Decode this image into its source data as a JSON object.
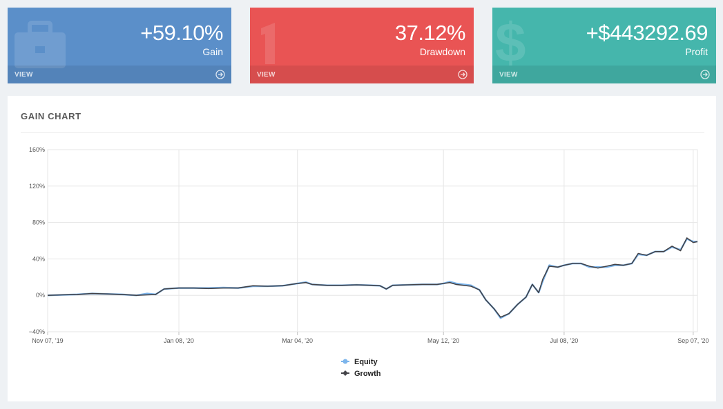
{
  "cards": {
    "gain": {
      "value": "+59.10%",
      "label": "Gain",
      "view": "VIEW",
      "color": "#5b8fc9",
      "icon": "briefcase-icon"
    },
    "drawdown": {
      "value": "37.12%",
      "label": "Drawdown",
      "view": "VIEW",
      "color": "#e95454",
      "icon": "number-one-icon"
    },
    "profit": {
      "value": "+$443292.69",
      "label": "Profit",
      "view": "VIEW",
      "color": "#45b6ac",
      "icon": "dollar-icon"
    }
  },
  "panel": {
    "title": "GAIN CHART"
  },
  "chart_data": {
    "type": "line",
    "ylim": [
      -40,
      160
    ],
    "yticks": [
      -40,
      0,
      40,
      80,
      120,
      160
    ],
    "ytick_labels": [
      "−40%",
      "0%",
      "40%",
      "80%",
      "120%",
      "160%"
    ],
    "xlim": [
      "2019-11-07",
      "2020-09-09"
    ],
    "xticks": [
      "2019-11-07",
      "2020-01-08",
      "2020-03-04",
      "2020-05-12",
      "2020-07-08",
      "2020-09-07"
    ],
    "xtick_labels": [
      "Nov 07, '19",
      "Jan 08, '20",
      "Mar 04, '20",
      "May 12, '20",
      "Jul 08, '20",
      "Sep 07, '20"
    ],
    "grid": true,
    "legend_position": "bottom-center",
    "series": [
      {
        "name": "Equity",
        "color": "#7cb5ec",
        "marker": "circle",
        "points": [
          [
            "2019-11-07",
            0
          ],
          [
            "2019-11-14",
            0.5
          ],
          [
            "2019-11-21",
            1
          ],
          [
            "2019-11-28",
            2
          ],
          [
            "2019-12-05",
            1.5
          ],
          [
            "2019-12-12",
            1
          ],
          [
            "2019-12-19",
            0
          ],
          [
            "2019-12-24",
            2
          ],
          [
            "2019-12-28",
            1
          ],
          [
            "2020-01-01",
            7
          ],
          [
            "2020-01-08",
            8
          ],
          [
            "2020-01-15",
            8
          ],
          [
            "2020-01-22",
            8
          ],
          [
            "2020-01-29",
            8.5
          ],
          [
            "2020-02-05",
            8
          ],
          [
            "2020-02-12",
            10
          ],
          [
            "2020-02-19",
            10
          ],
          [
            "2020-02-26",
            10.5
          ],
          [
            "2020-03-04",
            13
          ],
          [
            "2020-03-08",
            14.5
          ],
          [
            "2020-03-11",
            12
          ],
          [
            "2020-03-18",
            11
          ],
          [
            "2020-03-25",
            11
          ],
          [
            "2020-04-01",
            11.5
          ],
          [
            "2020-04-08",
            11
          ],
          [
            "2020-04-12",
            10.5
          ],
          [
            "2020-04-15",
            7
          ],
          [
            "2020-04-18",
            11
          ],
          [
            "2020-04-25",
            11.5
          ],
          [
            "2020-05-02",
            12
          ],
          [
            "2020-05-09",
            12
          ],
          [
            "2020-05-12",
            13
          ],
          [
            "2020-05-15",
            15
          ],
          [
            "2020-05-18",
            13
          ],
          [
            "2020-05-25",
            11
          ],
          [
            "2020-05-29",
            6
          ],
          [
            "2020-06-01",
            -5
          ],
          [
            "2020-06-05",
            -15
          ],
          [
            "2020-06-08",
            -25
          ],
          [
            "2020-06-12",
            -20
          ],
          [
            "2020-06-16",
            -10
          ],
          [
            "2020-06-20",
            -2
          ],
          [
            "2020-06-23",
            12
          ],
          [
            "2020-06-26",
            3
          ],
          [
            "2020-06-28",
            16
          ],
          [
            "2020-07-01",
            33
          ],
          [
            "2020-07-05",
            31
          ],
          [
            "2020-07-08",
            33
          ],
          [
            "2020-07-12",
            35
          ],
          [
            "2020-07-16",
            35
          ],
          [
            "2020-07-20",
            31
          ],
          [
            "2020-07-24",
            31
          ],
          [
            "2020-07-28",
            31
          ],
          [
            "2020-08-01",
            33
          ],
          [
            "2020-08-05",
            33
          ],
          [
            "2020-08-09",
            35
          ],
          [
            "2020-08-12",
            45
          ],
          [
            "2020-08-16",
            44
          ],
          [
            "2020-08-20",
            48
          ],
          [
            "2020-08-24",
            48
          ],
          [
            "2020-08-28",
            53
          ],
          [
            "2020-09-01",
            50
          ],
          [
            "2020-09-04",
            62
          ],
          [
            "2020-09-07",
            59
          ],
          [
            "2020-09-09",
            59
          ]
        ]
      },
      {
        "name": "Growth",
        "color": "#434348",
        "marker": "diamond",
        "points": [
          [
            "2019-11-07",
            0
          ],
          [
            "2019-11-14",
            0.5
          ],
          [
            "2019-11-21",
            1
          ],
          [
            "2019-11-28",
            2
          ],
          [
            "2019-12-05",
            1.5
          ],
          [
            "2019-12-12",
            1
          ],
          [
            "2019-12-19",
            0
          ],
          [
            "2019-12-24",
            0.5
          ],
          [
            "2019-12-28",
            1
          ],
          [
            "2020-01-01",
            7
          ],
          [
            "2020-01-08",
            8
          ],
          [
            "2020-01-15",
            8
          ],
          [
            "2020-01-22",
            7.5
          ],
          [
            "2020-01-29",
            8
          ],
          [
            "2020-02-05",
            8
          ],
          [
            "2020-02-12",
            10.5
          ],
          [
            "2020-02-19",
            10
          ],
          [
            "2020-02-26",
            10.5
          ],
          [
            "2020-03-04",
            13
          ],
          [
            "2020-03-08",
            14
          ],
          [
            "2020-03-11",
            12
          ],
          [
            "2020-03-18",
            11
          ],
          [
            "2020-03-25",
            11
          ],
          [
            "2020-04-01",
            11.5
          ],
          [
            "2020-04-08",
            11
          ],
          [
            "2020-04-12",
            10.5
          ],
          [
            "2020-04-15",
            7
          ],
          [
            "2020-04-18",
            11
          ],
          [
            "2020-04-25",
            11.5
          ],
          [
            "2020-05-02",
            12
          ],
          [
            "2020-05-09",
            12
          ],
          [
            "2020-05-12",
            13
          ],
          [
            "2020-05-15",
            14
          ],
          [
            "2020-05-18",
            12
          ],
          [
            "2020-05-25",
            10
          ],
          [
            "2020-05-29",
            6
          ],
          [
            "2020-06-01",
            -5
          ],
          [
            "2020-06-05",
            -15
          ],
          [
            "2020-06-08",
            -24
          ],
          [
            "2020-06-12",
            -20
          ],
          [
            "2020-06-16",
            -10
          ],
          [
            "2020-06-20",
            -2
          ],
          [
            "2020-06-23",
            12
          ],
          [
            "2020-06-26",
            3
          ],
          [
            "2020-06-28",
            18
          ],
          [
            "2020-07-01",
            32
          ],
          [
            "2020-07-05",
            31
          ],
          [
            "2020-07-08",
            33
          ],
          [
            "2020-07-12",
            35
          ],
          [
            "2020-07-16",
            35
          ],
          [
            "2020-07-20",
            32
          ],
          [
            "2020-07-24",
            30
          ],
          [
            "2020-07-28",
            32
          ],
          [
            "2020-08-01",
            34
          ],
          [
            "2020-08-05",
            33
          ],
          [
            "2020-08-09",
            35
          ],
          [
            "2020-08-12",
            46
          ],
          [
            "2020-08-16",
            44
          ],
          [
            "2020-08-20",
            48
          ],
          [
            "2020-08-24",
            48
          ],
          [
            "2020-08-28",
            54
          ],
          [
            "2020-09-01",
            49
          ],
          [
            "2020-09-04",
            63
          ],
          [
            "2020-09-07",
            58
          ],
          [
            "2020-09-09",
            59
          ]
        ]
      }
    ]
  }
}
